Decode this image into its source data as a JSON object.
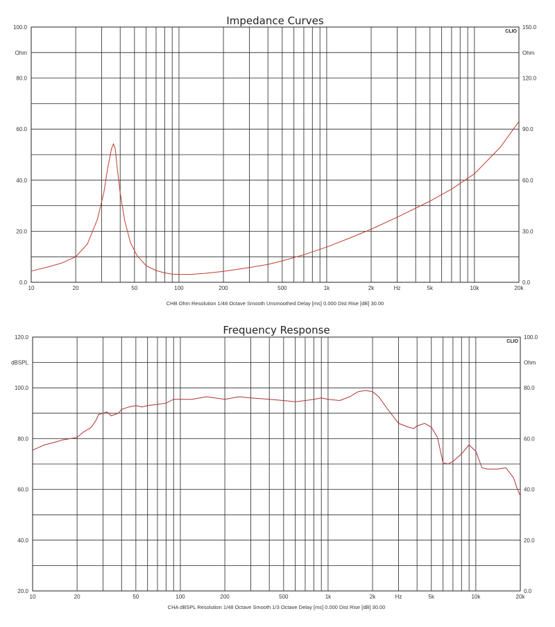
{
  "chart_data": [
    {
      "type": "line",
      "title": "Impedance Curves",
      "brand": "CLIO",
      "left_unit": "Ohm",
      "right_unit": "Ohm",
      "x_scale": "log",
      "xlim": [
        10,
        20000
      ],
      "ylim": [
        0,
        100
      ],
      "y2lim": [
        0,
        150
      ],
      "y_ticks": [
        {
          "v": 0,
          "label": "0.0"
        },
        {
          "v": 20,
          "label": "20.0"
        },
        {
          "v": 40,
          "label": "40.0"
        },
        {
          "v": 60,
          "label": "60.0"
        },
        {
          "v": 80,
          "label": "80.0"
        },
        {
          "v": 100,
          "label": "100.0"
        }
      ],
      "y_unit_value": 90,
      "y_grid": [
        0,
        10,
        20,
        30,
        40,
        50,
        60,
        70,
        80,
        90,
        100
      ],
      "y2_ticks": [
        {
          "v": 0,
          "label": "0.0"
        },
        {
          "v": 30,
          "label": "30.0"
        },
        {
          "v": 60,
          "label": "60.0"
        },
        {
          "v": 90,
          "label": "90.0"
        },
        {
          "v": 120,
          "label": "120.0"
        },
        {
          "v": 150,
          "label": "150.0"
        }
      ],
      "y2_unit_value": 135,
      "x_ticks": [
        {
          "v": 10,
          "label": "10"
        },
        {
          "v": 20,
          "label": "20"
        },
        {
          "v": 50,
          "label": "50"
        },
        {
          "v": 100,
          "label": "100"
        },
        {
          "v": 200,
          "label": "200"
        },
        {
          "v": 500,
          "label": "500"
        },
        {
          "v": 1000,
          "label": "1k"
        },
        {
          "v": 2000,
          "label": "2k"
        },
        {
          "v": 5000,
          "label": "5k"
        },
        {
          "v": 10000,
          "label": "10k"
        },
        {
          "v": 20000,
          "label": "20k"
        }
      ],
      "x_unit_label": "Hz",
      "x_unit_value": 3000,
      "footer": "CHB Ohm Resolution 1/48 Octave Smooth Unsmoothed Delay [ms] 0.000 Dist Rise [dB] 30.00",
      "series": [
        {
          "color": "#c0392b",
          "x": [
            10,
            13,
            16,
            20,
            24,
            28,
            31,
            33,
            35,
            36,
            37,
            38,
            40,
            43,
            47,
            52,
            60,
            70,
            80,
            90,
            100,
            120,
            150,
            200,
            300,
            400,
            500,
            700,
            1000,
            1500,
            2000,
            3000,
            5000,
            7000,
            10000,
            15000,
            20000
          ],
          "y": [
            4.4,
            6.0,
            7.5,
            10.0,
            15.0,
            24.5,
            35.0,
            45.0,
            52.5,
            54.2,
            52.5,
            46.0,
            35.0,
            24.0,
            15.5,
            10.5,
            6.5,
            4.6,
            3.7,
            3.2,
            3.1,
            3.1,
            3.5,
            4.3,
            5.8,
            7.0,
            8.4,
            10.8,
            13.8,
            17.8,
            20.8,
            25.5,
            31.8,
            36.5,
            42.5,
            53.0,
            63.0
          ]
        }
      ]
    },
    {
      "type": "line",
      "title": "Frequency Response",
      "brand": "CLIO",
      "left_unit": "dBSPL",
      "right_unit": "Ohm",
      "x_scale": "log",
      "xlim": [
        10,
        20000
      ],
      "ylim": [
        20,
        120
      ],
      "y2lim": [
        0,
        100
      ],
      "y_ticks": [
        {
          "v": 20,
          "label": "20.0"
        },
        {
          "v": 40,
          "label": "40.0"
        },
        {
          "v": 60,
          "label": "60.0"
        },
        {
          "v": 80,
          "label": "80.0"
        },
        {
          "v": 100,
          "label": "100.0"
        },
        {
          "v": 120,
          "label": "120.0"
        }
      ],
      "y_unit_value": 110,
      "y_grid": [
        20,
        30,
        40,
        50,
        60,
        70,
        80,
        90,
        100,
        110,
        120
      ],
      "y2_ticks": [
        {
          "v": 0,
          "label": "0.0"
        },
        {
          "v": 20,
          "label": "20.0"
        },
        {
          "v": 40,
          "label": "40.0"
        },
        {
          "v": 60,
          "label": "60.0"
        },
        {
          "v": 80,
          "label": "80.0"
        },
        {
          "v": 100,
          "label": "100.0"
        }
      ],
      "y2_unit_value": 90,
      "x_ticks": [
        {
          "v": 10,
          "label": "10"
        },
        {
          "v": 20,
          "label": "20"
        },
        {
          "v": 50,
          "label": "50"
        },
        {
          "v": 100,
          "label": "100"
        },
        {
          "v": 200,
          "label": "200"
        },
        {
          "v": 500,
          "label": "500"
        },
        {
          "v": 1000,
          "label": "1k"
        },
        {
          "v": 2000,
          "label": "2k"
        },
        {
          "v": 5000,
          "label": "5k"
        },
        {
          "v": 10000,
          "label": "10k"
        },
        {
          "v": 20000,
          "label": "20k"
        }
      ],
      "x_unit_label": "Hz",
      "x_unit_value": 3000,
      "footer": "CHA dBSPL Resolution 1/48 Octave Smooth 1/3 Octave Delay [ms] 0.000 Dist Rise [dB] 30.00",
      "series": [
        {
          "color": "#b03030",
          "x": [
            10,
            11,
            12,
            14,
            16,
            18,
            20,
            22,
            25,
            27,
            28,
            30,
            32,
            34,
            36,
            38,
            40,
            45,
            50,
            55,
            60,
            70,
            80,
            90,
            100,
            120,
            150,
            200,
            250,
            300,
            400,
            500,
            600,
            700,
            800,
            900,
            1000,
            1200,
            1400,
            1600,
            1800,
            2000,
            2200,
            2500,
            3000,
            3500,
            3800,
            4000,
            4500,
            5000,
            5500,
            6000,
            6500,
            7000,
            8000,
            9000,
            10000,
            11000,
            12000,
            14000,
            16000,
            18000,
            19000,
            20000
          ],
          "y": [
            75.5,
            76.5,
            77.5,
            78.5,
            79.5,
            80.0,
            80.5,
            82.5,
            84.5,
            87.5,
            89.5,
            90.0,
            90.5,
            89.0,
            89.5,
            90.0,
            91.5,
            92.5,
            93.0,
            92.5,
            93.0,
            93.5,
            94.0,
            95.5,
            95.5,
            95.5,
            96.5,
            95.5,
            96.5,
            96.0,
            95.5,
            95.0,
            94.5,
            95.0,
            95.5,
            96.0,
            95.5,
            95.0,
            96.5,
            98.5,
            99.0,
            98.5,
            96.5,
            92.0,
            86.0,
            84.5,
            84.0,
            85.0,
            86.0,
            84.5,
            80.5,
            70.5,
            70.0,
            71.0,
            74.0,
            77.5,
            75.0,
            68.5,
            68.0,
            68.0,
            68.5,
            64.5,
            60.5,
            57.5
          ]
        }
      ]
    }
  ]
}
